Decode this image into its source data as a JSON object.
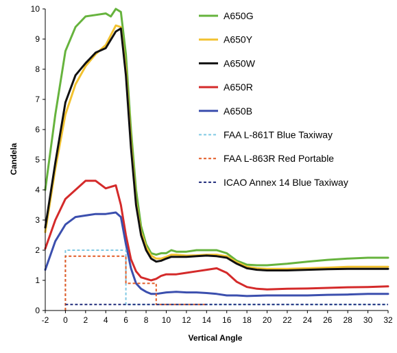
{
  "chart_data": {
    "type": "line",
    "title": "",
    "xlabel": "Vertical Angle",
    "ylabel": "Candela",
    "xlim": [
      -2,
      32
    ],
    "ylim": [
      0,
      10
    ],
    "x_ticks": [
      "-2",
      "0",
      "2",
      "4",
      "6",
      "8",
      "10",
      "12",
      "14",
      "16",
      "18",
      "20",
      "22",
      "24",
      "26",
      "28",
      "30",
      "32"
    ],
    "y_ticks": [
      "0",
      "1",
      "2",
      "3",
      "4",
      "5",
      "6",
      "7",
      "8",
      "9",
      "10"
    ],
    "grid": false,
    "legend_position": "top-right",
    "series": [
      {
        "name": "A650G",
        "color": "#66b33d",
        "style": "solid",
        "x": [
          -2,
          -1,
          0,
          1,
          2,
          3,
          4,
          4.5,
          5,
          5.5,
          6,
          6.5,
          7,
          7.5,
          8,
          8.5,
          9,
          9.5,
          10,
          10.5,
          11,
          12,
          13,
          14,
          15,
          16,
          17,
          18,
          19,
          20,
          22,
          24,
          26,
          28,
          30,
          32
        ],
        "y": [
          4.0,
          6.5,
          8.6,
          9.4,
          9.75,
          9.8,
          9.85,
          9.75,
          10.0,
          9.9,
          8.5,
          6.0,
          4.0,
          2.8,
          2.2,
          1.9,
          1.85,
          1.9,
          1.9,
          2.0,
          1.95,
          1.95,
          2.0,
          2.0,
          2.0,
          1.9,
          1.65,
          1.52,
          1.5,
          1.5,
          1.55,
          1.62,
          1.68,
          1.72,
          1.75,
          1.75
        ]
      },
      {
        "name": "A650Y",
        "color": "#f2c230",
        "style": "solid",
        "x": [
          -2,
          -1,
          0,
          1,
          2,
          3,
          4,
          5,
          5.5,
          6,
          6.5,
          7,
          7.5,
          8,
          8.5,
          9,
          9.5,
          10,
          10.5,
          11,
          12,
          13,
          14,
          15,
          16,
          17,
          18,
          19,
          20,
          22,
          24,
          26,
          28,
          30,
          32
        ],
        "y": [
          2.6,
          4.7,
          6.5,
          7.5,
          8.1,
          8.5,
          8.8,
          9.45,
          9.4,
          8.0,
          5.6,
          3.6,
          2.6,
          2.1,
          1.82,
          1.72,
          1.72,
          1.78,
          1.85,
          1.85,
          1.82,
          1.83,
          1.85,
          1.85,
          1.8,
          1.6,
          1.45,
          1.4,
          1.38,
          1.38,
          1.4,
          1.42,
          1.45,
          1.45,
          1.45
        ]
      },
      {
        "name": "A650W",
        "color": "#111111",
        "style": "solid",
        "x": [
          -2,
          -1,
          0,
          1,
          2,
          3,
          4,
          5,
          5.5,
          6,
          6.5,
          7,
          7.5,
          8,
          8.5,
          9,
          9.5,
          10,
          10.5,
          11,
          12,
          13,
          14,
          15,
          16,
          17,
          18,
          19,
          20,
          22,
          24,
          26,
          28,
          30,
          32
        ],
        "y": [
          2.75,
          4.9,
          6.9,
          7.8,
          8.2,
          8.55,
          8.7,
          9.25,
          9.35,
          7.8,
          5.4,
          3.5,
          2.5,
          2.0,
          1.72,
          1.62,
          1.65,
          1.72,
          1.78,
          1.78,
          1.78,
          1.8,
          1.82,
          1.8,
          1.75,
          1.55,
          1.4,
          1.35,
          1.33,
          1.33,
          1.35,
          1.37,
          1.38,
          1.38,
          1.38
        ]
      },
      {
        "name": "A650R",
        "color": "#d42a2a",
        "style": "solid",
        "x": [
          -2,
          -1,
          0,
          1,
          2,
          3,
          4,
          4.5,
          5,
          5.5,
          6,
          6.5,
          7,
          7.5,
          8,
          8.5,
          9,
          9.5,
          10,
          11,
          12,
          13,
          14,
          15,
          16,
          17,
          18,
          19,
          20,
          22,
          24,
          26,
          28,
          30,
          32
        ],
        "y": [
          2.05,
          3.0,
          3.7,
          4.0,
          4.3,
          4.3,
          4.05,
          4.1,
          4.15,
          3.5,
          2.5,
          1.7,
          1.3,
          1.1,
          1.05,
          1.0,
          1.05,
          1.15,
          1.2,
          1.2,
          1.25,
          1.3,
          1.35,
          1.4,
          1.25,
          0.95,
          0.78,
          0.72,
          0.7,
          0.72,
          0.73,
          0.75,
          0.77,
          0.78,
          0.8
        ]
      },
      {
        "name": "A650B",
        "color": "#3b4fae",
        "style": "solid",
        "x": [
          -2,
          -1,
          0,
          1,
          2,
          3,
          4,
          5,
          5.5,
          6,
          6.5,
          7,
          7.5,
          8,
          8.5,
          9,
          10,
          11,
          12,
          13,
          14,
          15,
          16,
          17,
          18,
          20,
          22,
          24,
          26,
          28,
          30,
          32
        ],
        "y": [
          1.35,
          2.3,
          2.85,
          3.1,
          3.15,
          3.2,
          3.2,
          3.25,
          3.1,
          2.2,
          1.4,
          0.9,
          0.72,
          0.62,
          0.55,
          0.55,
          0.6,
          0.62,
          0.6,
          0.6,
          0.58,
          0.55,
          0.5,
          0.5,
          0.48,
          0.5,
          0.5,
          0.5,
          0.52,
          0.53,
          0.55,
          0.55
        ]
      },
      {
        "name": "FAA L-861T Blue Taxiway",
        "color": "#7ec8e3",
        "style": "dashed",
        "x": [
          0,
          0,
          6,
          6,
          32
        ],
        "y": [
          0,
          2.0,
          2.0,
          0.2,
          0.2
        ]
      },
      {
        "name": "FAA L-863R Red Portable",
        "color": "#e25a24",
        "style": "dashed",
        "x": [
          0,
          0,
          6,
          6,
          9,
          9,
          14
        ],
        "y": [
          0,
          1.8,
          1.8,
          0.9,
          0.9,
          0.2,
          0.2
        ]
      },
      {
        "name": "ICAO Annex 14 Blue Taxiway",
        "color": "#1e2a7a",
        "style": "dashed",
        "x": [
          0,
          32
        ],
        "y": [
          0.2,
          0.2
        ]
      }
    ]
  }
}
